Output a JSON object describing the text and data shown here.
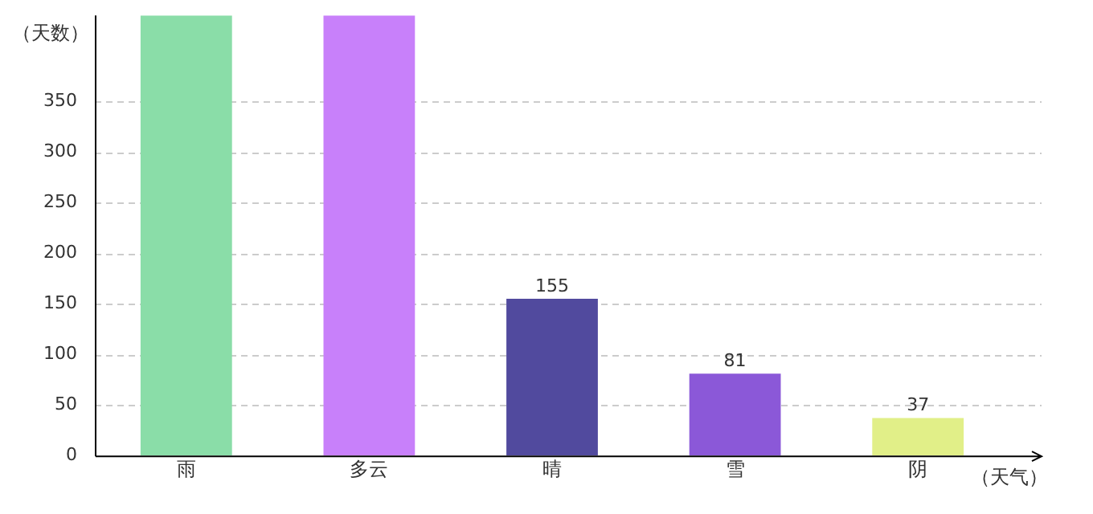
{
  "chart_data": {
    "type": "bar",
    "xlabel": "（天气）",
    "ylabel": "（天数）",
    "categories": [
      "雨",
      "多云",
      "晴",
      "雪",
      "阴"
    ],
    "values": [
      435,
      435,
      155,
      81,
      37
    ],
    "value_labels": [
      null,
      null,
      "155",
      "81",
      "37"
    ],
    "colors": [
      "#8adda8",
      "#c880fa",
      "#514a9e",
      "#8b58d8",
      "#e1ef88"
    ],
    "ylim": [
      0,
      435
    ],
    "yticks": [
      0,
      50,
      100,
      150,
      200,
      250,
      300,
      350
    ],
    "grid": "y",
    "legend": false
  }
}
